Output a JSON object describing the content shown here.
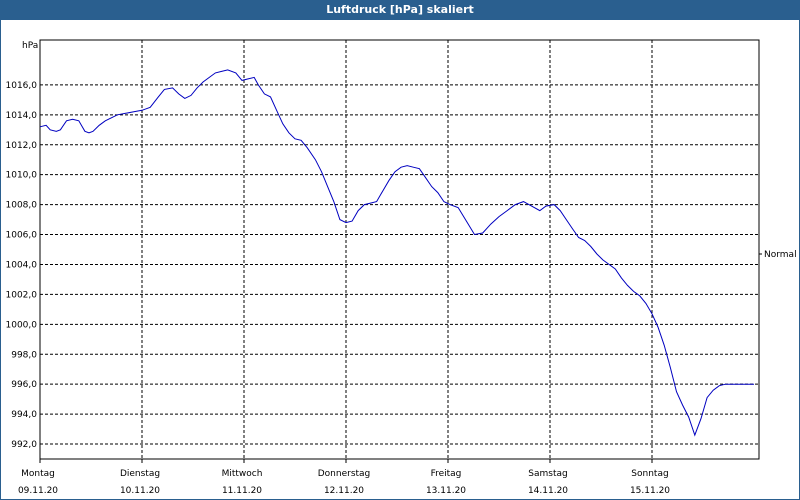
{
  "window": {
    "title": "Luftdruck [hPa] skaliert"
  },
  "colors": {
    "titlebar": "#2a5f8f",
    "series": "#0000c0",
    "grid": "#000000"
  },
  "chart_data": {
    "type": "line",
    "title": "Luftdruck [hPa] skaliert",
    "ylabel": "hPa",
    "xlabel": "",
    "ylim": [
      991,
      1019
    ],
    "yticks": [
      992,
      994,
      996,
      998,
      1000,
      1002,
      1004,
      1006,
      1008,
      1010,
      1012,
      1014,
      1016
    ],
    "ytick_labels": [
      "992,0",
      "994,0",
      "996,0",
      "998,0",
      "1000,0",
      "1002,0",
      "1004,0",
      "1006,0",
      "1008,0",
      "1010,0",
      "1012,0",
      "1014,0",
      "1016,0"
    ],
    "xlim": [
      0,
      7
    ],
    "x_categories": [
      {
        "day": "Montag",
        "date": "09.11.20"
      },
      {
        "day": "Dienstag",
        "date": "10.11.20"
      },
      {
        "day": "Mittwoch",
        "date": "11.11.20"
      },
      {
        "day": "Donnerstag",
        "date": "12.11.20"
      },
      {
        "day": "Freitag",
        "date": "13.11.20"
      },
      {
        "day": "Samstag",
        "date": "14.11.20"
      },
      {
        "day": "Sonntag",
        "date": "15.11.20"
      }
    ],
    "reference_label": "Normal",
    "grid": true,
    "series": [
      {
        "name": "Luftdruck",
        "x": [
          0,
          0.06,
          0.1,
          0.16,
          0.2,
          0.26,
          0.32,
          0.38,
          0.44,
          0.48,
          0.52,
          0.58,
          0.64,
          0.7,
          0.76,
          0.84,
          0.92,
          1.0,
          1.08,
          1.16,
          1.22,
          1.3,
          1.36,
          1.42,
          1.48,
          1.54,
          1.6,
          1.66,
          1.72,
          1.78,
          1.84,
          1.92,
          1.98,
          2.04,
          2.1,
          2.14,
          2.2,
          2.26,
          2.32,
          2.38,
          2.44,
          2.5,
          2.56,
          2.62,
          2.7,
          2.76,
          2.82,
          2.88,
          2.94,
          3.0,
          3.06,
          3.12,
          3.18,
          3.24,
          3.3,
          3.36,
          3.42,
          3.48,
          3.54,
          3.6,
          3.66,
          3.72,
          3.78,
          3.84,
          3.9,
          3.96,
          4.02,
          4.1,
          4.18,
          4.26,
          4.34,
          4.42,
          4.5,
          4.58,
          4.66,
          4.74,
          4.82,
          4.9,
          4.96,
          5.04,
          5.1,
          5.16,
          5.22,
          5.28,
          5.34,
          5.4,
          5.46,
          5.52,
          5.58,
          5.64,
          5.7,
          5.76,
          5.82,
          5.88,
          5.94,
          6.0,
          6.06,
          6.12,
          6.18,
          6.24,
          6.3,
          6.36,
          6.42,
          6.48,
          6.54,
          6.6,
          6.66,
          6.72,
          6.78,
          6.84,
          6.9,
          6.96,
          7.0
        ],
        "y": [
          1013.2,
          1013.3,
          1013.0,
          1012.9,
          1013.0,
          1013.6,
          1013.7,
          1013.6,
          1012.9,
          1012.8,
          1012.9,
          1013.3,
          1013.6,
          1013.8,
          1014.0,
          1014.1,
          1014.2,
          1014.3,
          1014.5,
          1015.2,
          1015.7,
          1015.8,
          1015.4,
          1015.1,
          1015.3,
          1015.8,
          1016.2,
          1016.5,
          1016.8,
          1016.9,
          1017.0,
          1016.8,
          1016.3,
          1016.4,
          1016.5,
          1016.0,
          1015.4,
          1015.2,
          1014.3,
          1013.4,
          1012.8,
          1012.4,
          1012.3,
          1011.8,
          1011.0,
          1010.2,
          1009.2,
          1008.2,
          1007.0,
          1006.8,
          1006.9,
          1007.6,
          1008.0,
          1008.1,
          1008.2,
          1008.9,
          1009.6,
          1010.2,
          1010.5,
          1010.6,
          1010.5,
          1010.4,
          1009.8,
          1009.2,
          1008.8,
          1008.2,
          1008.0,
          1007.8,
          1006.9,
          1006.0,
          1006.1,
          1006.7,
          1007.2,
          1007.6,
          1008.0,
          1008.2,
          1007.9,
          1007.6,
          1007.9,
          1008.0,
          1007.6,
          1007.0,
          1006.4,
          1005.8,
          1005.6,
          1005.2,
          1004.7,
          1004.3,
          1004.0,
          1003.7,
          1003.1,
          1002.6,
          1002.2,
          1001.9,
          1001.4,
          1000.7,
          999.8,
          998.6,
          997.1,
          995.5,
          994.6,
          993.8,
          992.6,
          993.7,
          995.1,
          995.6,
          995.9,
          996.0,
          996.0,
          996.0,
          996.0,
          996.0,
          996.0
        ]
      }
    ]
  }
}
